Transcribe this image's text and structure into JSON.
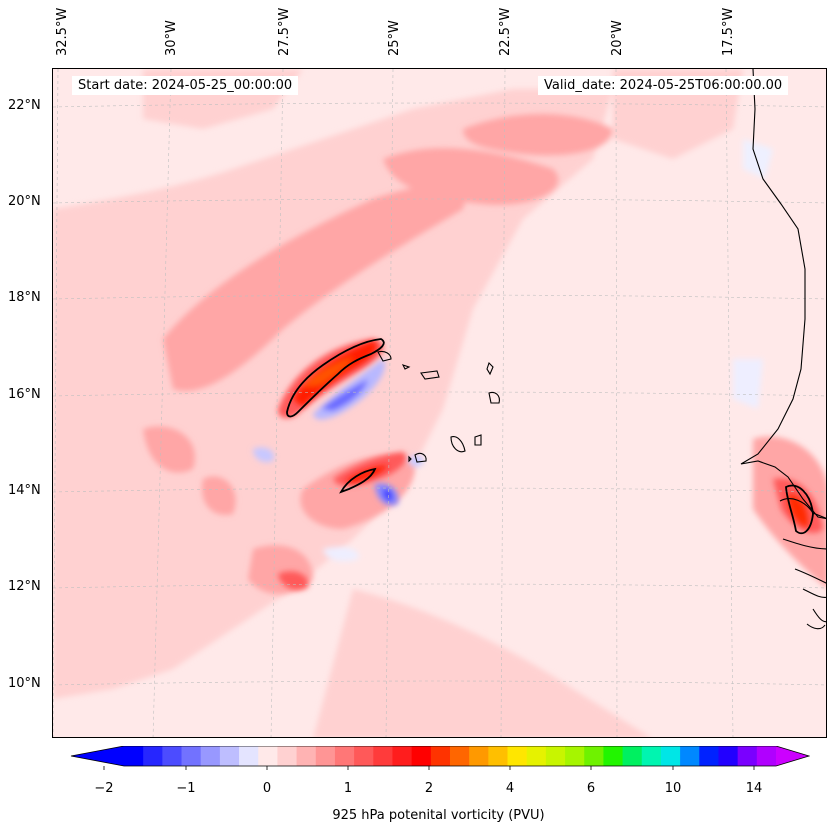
{
  "map": {
    "start_date": "Start date: 2024-05-25_00:00:00",
    "valid_date": "Valid_date: 2024-05-25T06:00:00.00",
    "lon_labels": [
      "32.5°W",
      "30°W",
      "27.5°W",
      "25°W",
      "22.5°W",
      "20°W",
      "17.5°W"
    ],
    "lat_labels": [
      "22°N",
      "20°N",
      "18°N",
      "16°N",
      "14°N",
      "12°N",
      "10°N"
    ]
  },
  "colorbar": {
    "title": "925 hPa potenital vorticity (PVU)",
    "ticks": [
      "−2",
      "−1",
      "0",
      "1",
      "2",
      "4",
      "6",
      "10",
      "14"
    ],
    "colors": [
      "#0000ff",
      "#2626ff",
      "#4c4cff",
      "#7272ff",
      "#9898ff",
      "#bebeff",
      "#e4e4ff",
      "#ffe9e9",
      "#ffd1d1",
      "#ffb3b3",
      "#ff9595",
      "#ff7777",
      "#ff5959",
      "#ff3b3b",
      "#ff1d1d",
      "#ff0000",
      "#ff3300",
      "#ff6600",
      "#ff9900",
      "#ffbf00",
      "#ffe600",
      "#e6f200",
      "#c8f500",
      "#a6f500",
      "#6ff200",
      "#22f500",
      "#00f060",
      "#00f5b0",
      "#00e6e6",
      "#0088ff",
      "#0022ff",
      "#2200ff",
      "#7a00ff",
      "#b000ff"
    ],
    "extend_low": "#0000ff",
    "extend_high": "#cc00ff"
  }
}
